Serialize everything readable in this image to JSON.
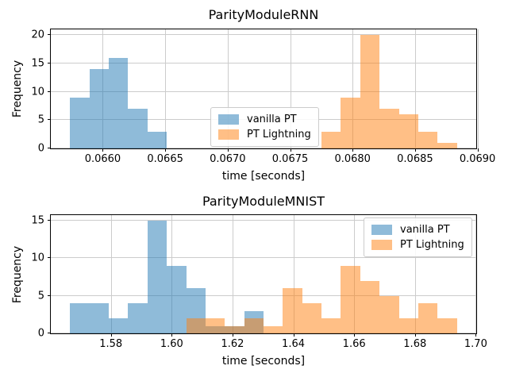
{
  "figure": {
    "background": "#ffffff"
  },
  "colors": {
    "vanilla_pt": "rgba(31,119,180,0.5)",
    "pt_lightning": "rgba(255,127,14,0.5)",
    "grid": "#cccccc",
    "spine": "#000000"
  },
  "chart_data": [
    {
      "type": "bar",
      "subtype": "histogram",
      "title": "ParityModuleRNN",
      "xlabel": "time [seconds]",
      "ylabel": "Frequency",
      "xlim": [
        0.0655842,
        0.0689898
      ],
      "ylim": [
        0,
        21
      ],
      "grid": true,
      "legend_position": "center",
      "xticks": [
        0.066,
        0.0665,
        0.067,
        0.0675,
        0.068,
        0.0685,
        0.069
      ],
      "xtick_labels": [
        "0.0660",
        "0.0665",
        "0.0670",
        "0.0675",
        "0.0680",
        "0.0685",
        "0.0690"
      ],
      "yticks": [
        0,
        5,
        10,
        15,
        20
      ],
      "ytick_labels": [
        "0",
        "5",
        "10",
        "15",
        "20"
      ],
      "bin_width": 0.0001548,
      "series": [
        {
          "name": "vanilla PT",
          "color": "rgba(31,119,180,0.5)",
          "bin_start": 0.065739,
          "counts": [
            9,
            14,
            16,
            7,
            3
          ]
        },
        {
          "name": "PT Lightning",
          "color": "rgba(255,127,14,0.5)",
          "bin_start": 0.0677514,
          "counts": [
            3,
            9,
            20,
            7,
            6,
            3,
            1
          ]
        }
      ]
    },
    {
      "type": "bar",
      "subtype": "histogram",
      "title": "ParityModuleMNIST",
      "xlabel": "time [seconds]",
      "ylabel": "Frequency",
      "xlim": [
        1.56024,
        1.70016
      ],
      "ylim": [
        0,
        15.75
      ],
      "grid": true,
      "legend_position": "upper right",
      "xticks": [
        1.58,
        1.6,
        1.62,
        1.64,
        1.66,
        1.68,
        1.7
      ],
      "xtick_labels": [
        "1.58",
        "1.60",
        "1.62",
        "1.64",
        "1.66",
        "1.68",
        "1.70"
      ],
      "yticks": [
        0,
        5,
        10,
        15
      ],
      "ytick_labels": [
        "0",
        "5",
        "10",
        "15"
      ],
      "bin_width": 0.00636,
      "series": [
        {
          "name": "vanilla PT",
          "color": "rgba(31,119,180,0.5)",
          "bin_start": 1.5666,
          "counts": [
            4,
            4,
            2,
            4,
            15,
            9,
            6,
            1,
            1,
            3
          ]
        },
        {
          "name": "PT Lightning",
          "color": "rgba(255,127,14,0.5)",
          "bin_start": 1.60476,
          "counts": [
            2,
            2,
            1,
            2,
            1,
            6,
            4,
            2,
            9,
            7,
            5,
            2,
            4,
            2
          ]
        }
      ]
    }
  ]
}
